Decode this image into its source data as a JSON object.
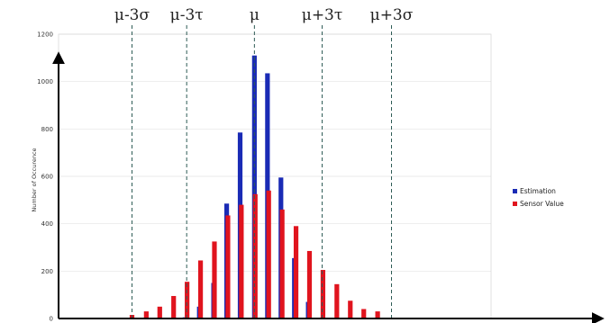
{
  "chart_data": {
    "type": "bar",
    "ylabel": "Number of Occurence",
    "xlabel": "",
    "ylim": [
      0,
      1200
    ],
    "yticks": [
      "0",
      "200",
      "400",
      "600",
      "800",
      "1000",
      "1200"
    ],
    "grid": true,
    "legend_position": "right",
    "markers": [
      {
        "label": "μ-3σ",
        "x": -3.0
      },
      {
        "label": "μ-3τ",
        "x": -1.66
      },
      {
        "label": "μ",
        "x": 0.0
      },
      {
        "label": "μ+3τ",
        "x": 1.66
      },
      {
        "label": "μ+3σ",
        "x": 3.36
      }
    ],
    "xlim": [
      -4.8,
      5.8
    ],
    "series": [
      {
        "name": "Estimation",
        "color": "#1a2bb5",
        "points": [
          {
            "x": -1.7,
            "y": 5
          },
          {
            "x": -1.35,
            "y": 50
          },
          {
            "x": -1.0,
            "y": 150
          },
          {
            "x": -0.68,
            "y": 485
          },
          {
            "x": -0.35,
            "y": 785
          },
          {
            "x": 0.0,
            "y": 1110
          },
          {
            "x": 0.32,
            "y": 1035
          },
          {
            "x": 0.65,
            "y": 595
          },
          {
            "x": 0.98,
            "y": 255
          },
          {
            "x": 1.32,
            "y": 70
          },
          {
            "x": 1.68,
            "y": 5
          }
        ]
      },
      {
        "name": "Sensor Value",
        "color": "#e0141e",
        "points": [
          {
            "x": -3.0,
            "y": 15
          },
          {
            "x": -2.65,
            "y": 30
          },
          {
            "x": -2.32,
            "y": 50
          },
          {
            "x": -1.98,
            "y": 95
          },
          {
            "x": -1.65,
            "y": 155
          },
          {
            "x": -1.32,
            "y": 245
          },
          {
            "x": -0.98,
            "y": 325
          },
          {
            "x": -0.65,
            "y": 435
          },
          {
            "x": -0.32,
            "y": 480
          },
          {
            "x": 0.02,
            "y": 525
          },
          {
            "x": 0.35,
            "y": 540
          },
          {
            "x": 0.68,
            "y": 460
          },
          {
            "x": 1.02,
            "y": 390
          },
          {
            "x": 1.35,
            "y": 285
          },
          {
            "x": 1.68,
            "y": 205
          },
          {
            "x": 2.02,
            "y": 145
          },
          {
            "x": 2.35,
            "y": 75
          },
          {
            "x": 2.68,
            "y": 40
          },
          {
            "x": 3.02,
            "y": 30
          }
        ]
      }
    ],
    "legend": [
      "Estimation",
      "Sensor Value"
    ]
  }
}
